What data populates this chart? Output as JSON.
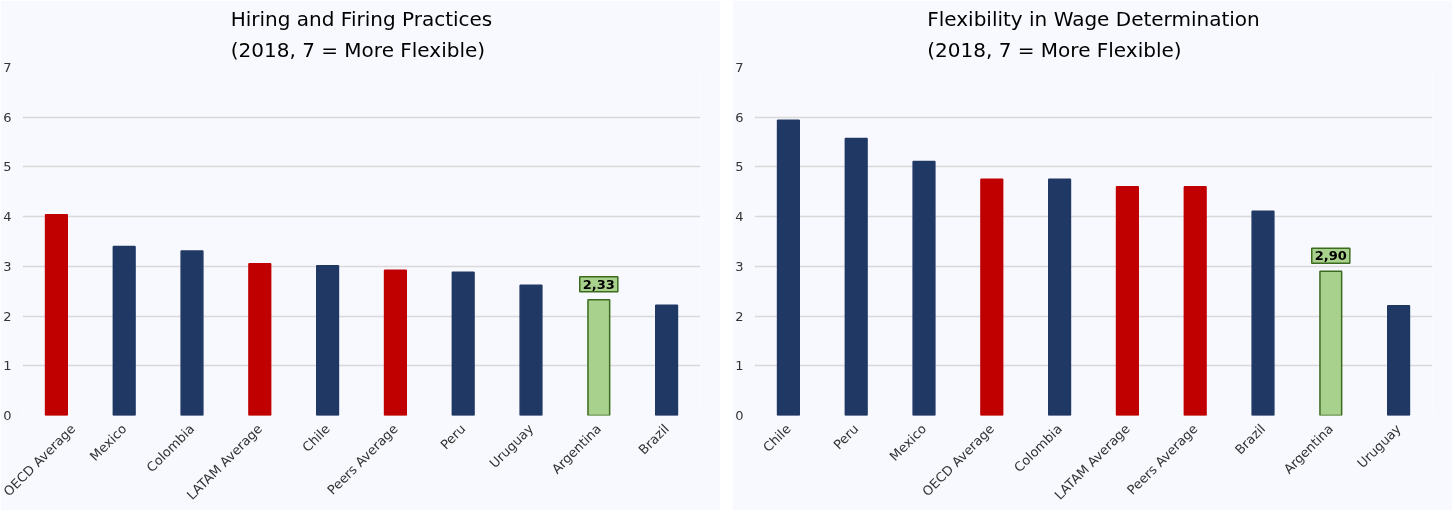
{
  "chart_data": [
    {
      "type": "bar",
      "title": "Hiring and Firing Practices\n(2018, 7 = More Flexible)",
      "categories": [
        "OECD Average",
        "Mexico",
        "Colombia",
        "LATAM Average",
        "Chile",
        "Peers Average",
        "Peru",
        "Uruguay",
        "Argentina",
        "Brazil"
      ],
      "values": [
        4.04,
        3.4,
        3.31,
        3.05,
        3.01,
        2.92,
        2.88,
        2.62,
        2.33,
        2.22
      ],
      "colors": [
        "#c00000",
        "#203864",
        "#203864",
        "#c00000",
        "#203864",
        "#c00000",
        "#203864",
        "#203864",
        "#a9d18e",
        "#203864"
      ],
      "value_labels": [
        null,
        null,
        null,
        null,
        null,
        null,
        null,
        null,
        "2,33",
        null
      ],
      "ylim": [
        0,
        7
      ],
      "yticks": [
        0,
        1,
        2,
        3,
        4,
        5,
        6,
        7
      ],
      "grid": "y"
    },
    {
      "type": "bar",
      "title": "Flexibility in Wage Determination\n(2018, 7 = More Flexible)",
      "categories": [
        "Chile",
        "Peru",
        "Mexico",
        "OECD Average",
        "Colombia",
        "LATAM Average",
        "Peers Average",
        "Brazil",
        "Argentina",
        "Uruguay"
      ],
      "values": [
        5.94,
        5.57,
        5.11,
        4.75,
        4.75,
        4.6,
        4.6,
        4.11,
        2.9,
        2.21
      ],
      "colors": [
        "#203864",
        "#203864",
        "#203864",
        "#c00000",
        "#203864",
        "#c00000",
        "#c00000",
        "#203864",
        "#a9d18e",
        "#203864"
      ],
      "value_labels": [
        null,
        null,
        null,
        null,
        null,
        null,
        null,
        null,
        "2,90",
        null
      ],
      "ylim": [
        0,
        7
      ],
      "yticks": [
        0,
        1,
        2,
        3,
        4,
        5,
        6,
        7
      ],
      "grid": "y"
    }
  ]
}
